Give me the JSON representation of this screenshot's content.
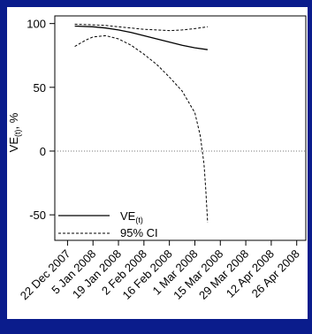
{
  "colors": {
    "background": "#0a1c8c",
    "panel": "#ffffff",
    "ink": "#000000",
    "zero_line": "#777777"
  },
  "chart_data": {
    "type": "line",
    "title": "",
    "xlabel": "",
    "ylabel_main": "VE",
    "ylabel_sub": "(t)",
    "ylabel_suffix": ", %",
    "grid": false,
    "legend_position": "bottom-left",
    "xlim": [
      "2007-12-15",
      "2008-05-01"
    ],
    "ylim": [
      -70,
      106
    ],
    "y_ticks": [
      100,
      50,
      0,
      -50
    ],
    "x_ticks": [
      {
        "date": "2007-12-22",
        "label": "22 Dec 2007"
      },
      {
        "date": "2008-01-05",
        "label": "5 Jan 2008"
      },
      {
        "date": "2008-01-19",
        "label": "19 Jan 2008"
      },
      {
        "date": "2008-02-02",
        "label": "2 Feb 2008"
      },
      {
        "date": "2008-02-16",
        "label": "16 Feb 2008"
      },
      {
        "date": "2008-03-01",
        "label": "1 Mar 2008"
      },
      {
        "date": "2008-03-15",
        "label": "15 Mar 2008"
      },
      {
        "date": "2008-03-29",
        "label": "29 Mar 2008"
      },
      {
        "date": "2008-04-12",
        "label": "12 Apr 2008"
      },
      {
        "date": "2008-04-26",
        "label": "26 Apr 2008"
      }
    ],
    "reference_line": {
      "y": 0,
      "style": "dotted"
    },
    "series": [
      {
        "name": "VE",
        "name_sub": "(t)",
        "style": "solid",
        "points": [
          {
            "x": "2007-12-26",
            "y": 98
          },
          {
            "x": "2008-01-05",
            "y": 97.5
          },
          {
            "x": "2008-01-12",
            "y": 96.5
          },
          {
            "x": "2008-01-19",
            "y": 95
          },
          {
            "x": "2008-01-26",
            "y": 93
          },
          {
            "x": "2008-02-02",
            "y": 90.5
          },
          {
            "x": "2008-02-09",
            "y": 88
          },
          {
            "x": "2008-02-16",
            "y": 85.5
          },
          {
            "x": "2008-02-23",
            "y": 83
          },
          {
            "x": "2008-03-01",
            "y": 81
          },
          {
            "x": "2008-03-08",
            "y": 79.5
          }
        ]
      },
      {
        "name": "95% CI",
        "style": "dashed",
        "points": [
          {
            "x": "2007-12-26",
            "y": 99.5
          },
          {
            "x": "2008-01-05",
            "y": 99
          },
          {
            "x": "2008-01-12",
            "y": 98.5
          },
          {
            "x": "2008-01-19",
            "y": 97.5
          },
          {
            "x": "2008-01-26",
            "y": 96.5
          },
          {
            "x": "2008-02-02",
            "y": 95.5
          },
          {
            "x": "2008-02-09",
            "y": 95
          },
          {
            "x": "2008-02-16",
            "y": 94.5
          },
          {
            "x": "2008-02-23",
            "y": 95
          },
          {
            "x": "2008-03-01",
            "y": 96
          },
          {
            "x": "2008-03-08",
            "y": 97.5
          }
        ]
      },
      {
        "name": "95% CI",
        "style": "dashed",
        "points": [
          {
            "x": "2007-12-26",
            "y": 82
          },
          {
            "x": "2008-01-01",
            "y": 87
          },
          {
            "x": "2008-01-05",
            "y": 89.5
          },
          {
            "x": "2008-01-12",
            "y": 90.5
          },
          {
            "x": "2008-01-19",
            "y": 88
          },
          {
            "x": "2008-01-26",
            "y": 83
          },
          {
            "x": "2008-02-02",
            "y": 76
          },
          {
            "x": "2008-02-09",
            "y": 68
          },
          {
            "x": "2008-02-16",
            "y": 58
          },
          {
            "x": "2008-02-23",
            "y": 47
          },
          {
            "x": "2008-03-01",
            "y": 30
          },
          {
            "x": "2008-03-04",
            "y": 12
          },
          {
            "x": "2008-03-06",
            "y": -10
          },
          {
            "x": "2008-03-07",
            "y": -30
          },
          {
            "x": "2008-03-08",
            "y": -56
          }
        ]
      }
    ],
    "legend": [
      {
        "label": "VE",
        "sub": "(t)",
        "style": "solid"
      },
      {
        "label": "95% CI",
        "style": "dashed"
      }
    ]
  }
}
